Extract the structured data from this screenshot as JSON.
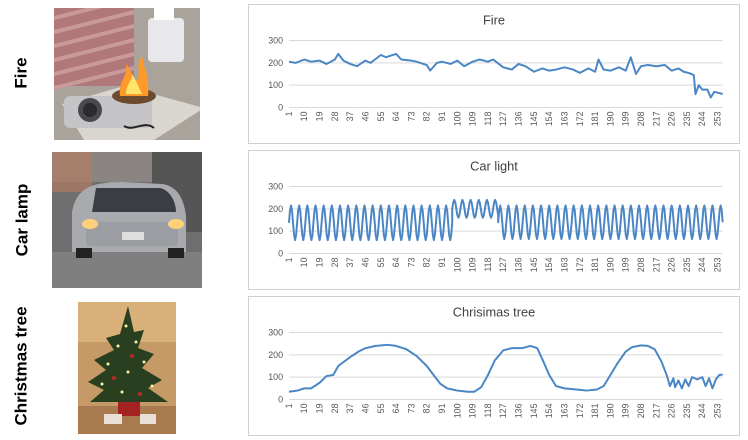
{
  "rows": [
    {
      "label": "Fire"
    },
    {
      "label": "Car lamp"
    },
    {
      "label": "Christmas tree"
    }
  ],
  "series_color": "#4a86c5",
  "chart_data": [
    {
      "type": "line",
      "title": "Fire",
      "ylim": [
        0,
        300
      ],
      "yticks": [
        0,
        100,
        200,
        300
      ],
      "xticks": [
        "1",
        "10",
        "19",
        "28",
        "37",
        "46",
        "55",
        "64",
        "73",
        "82",
        "91",
        "100",
        "109",
        "118",
        "127",
        "136",
        "145",
        "154",
        "163",
        "172",
        "181",
        "190",
        "199",
        "208",
        "217",
        "226",
        "235",
        "244",
        "253"
      ],
      "grid": true,
      "points": [
        [
          1,
          205
        ],
        [
          5,
          200
        ],
        [
          10,
          215
        ],
        [
          14,
          205
        ],
        [
          19,
          210
        ],
        [
          23,
          195
        ],
        [
          28,
          215
        ],
        [
          30,
          240
        ],
        [
          33,
          210
        ],
        [
          37,
          195
        ],
        [
          41,
          185
        ],
        [
          46,
          210
        ],
        [
          49,
          200
        ],
        [
          55,
          235
        ],
        [
          58,
          225
        ],
        [
          64,
          240
        ],
        [
          67,
          215
        ],
        [
          73,
          210
        ],
        [
          76,
          205
        ],
        [
          82,
          190
        ],
        [
          84,
          165
        ],
        [
          88,
          200
        ],
        [
          91,
          205
        ],
        [
          96,
          195
        ],
        [
          100,
          210
        ],
        [
          104,
          185
        ],
        [
          109,
          205
        ],
        [
          113,
          215
        ],
        [
          118,
          205
        ],
        [
          121,
          215
        ],
        [
          127,
          180
        ],
        [
          132,
          170
        ],
        [
          136,
          195
        ],
        [
          140,
          185
        ],
        [
          145,
          160
        ],
        [
          150,
          175
        ],
        [
          154,
          165
        ],
        [
          158,
          170
        ],
        [
          163,
          180
        ],
        [
          168,
          170
        ],
        [
          172,
          155
        ],
        [
          177,
          175
        ],
        [
          181,
          160
        ],
        [
          183,
          215
        ],
        [
          186,
          170
        ],
        [
          190,
          165
        ],
        [
          195,
          180
        ],
        [
          199,
          165
        ],
        [
          202,
          225
        ],
        [
          205,
          150
        ],
        [
          208,
          185
        ],
        [
          212,
          190
        ],
        [
          217,
          185
        ],
        [
          222,
          190
        ],
        [
          226,
          165
        ],
        [
          230,
          175
        ],
        [
          233,
          160
        ],
        [
          236,
          155
        ],
        [
          239,
          145
        ],
        [
          240,
          60
        ],
        [
          242,
          100
        ],
        [
          244,
          80
        ],
        [
          247,
          80
        ],
        [
          249,
          45
        ],
        [
          251,
          70
        ],
        [
          254,
          65
        ],
        [
          256,
          60
        ]
      ]
    },
    {
      "type": "line",
      "title": "Car light",
      "ylim": [
        0,
        300
      ],
      "yticks": [
        0,
        100,
        200,
        300
      ],
      "xticks": [
        "1",
        "10",
        "19",
        "28",
        "37",
        "46",
        "55",
        "64",
        "73",
        "82",
        "91",
        "100",
        "109",
        "118",
        "127",
        "136",
        "145",
        "154",
        "163",
        "172",
        "181",
        "190",
        "199",
        "208",
        "217",
        "226",
        "235",
        "244",
        "253"
      ],
      "grid": true,
      "oscillation": [
        {
          "from": 1,
          "to": 97,
          "period": 4.8,
          "high": 215,
          "low": 60
        },
        {
          "from": 97,
          "to": 124,
          "period": 4.8,
          "high": 240,
          "low": 160
        },
        {
          "from": 124,
          "to": 256,
          "period": 4.8,
          "high": 215,
          "low": 65
        }
      ]
    },
    {
      "type": "line",
      "title": "Chrisimas tree",
      "ylim": [
        0,
        300
      ],
      "yticks": [
        0,
        100,
        200,
        300
      ],
      "xticks": [
        "1",
        "10",
        "19",
        "28",
        "37",
        "46",
        "55",
        "64",
        "73",
        "82",
        "91",
        "100",
        "109",
        "118",
        "127",
        "136",
        "145",
        "154",
        "163",
        "172",
        "181",
        "190",
        "199",
        "208",
        "217",
        "226",
        "235",
        "244",
        "253"
      ],
      "grid": true,
      "points": [
        [
          1,
          35
        ],
        [
          6,
          40
        ],
        [
          10,
          50
        ],
        [
          14,
          50
        ],
        [
          19,
          75
        ],
        [
          23,
          105
        ],
        [
          27,
          110
        ],
        [
          30,
          150
        ],
        [
          37,
          190
        ],
        [
          42,
          215
        ],
        [
          46,
          230
        ],
        [
          52,
          240
        ],
        [
          59,
          245
        ],
        [
          64,
          240
        ],
        [
          70,
          225
        ],
        [
          76,
          195
        ],
        [
          82,
          150
        ],
        [
          86,
          110
        ],
        [
          90,
          70
        ],
        [
          94,
          50
        ],
        [
          100,
          40
        ],
        [
          106,
          35
        ],
        [
          110,
          35
        ],
        [
          114,
          55
        ],
        [
          118,
          110
        ],
        [
          122,
          175
        ],
        [
          127,
          220
        ],
        [
          132,
          230
        ],
        [
          138,
          230
        ],
        [
          143,
          240
        ],
        [
          147,
          230
        ],
        [
          150,
          180
        ],
        [
          154,
          110
        ],
        [
          158,
          60
        ],
        [
          163,
          50
        ],
        [
          170,
          45
        ],
        [
          176,
          40
        ],
        [
          182,
          45
        ],
        [
          186,
          60
        ],
        [
          190,
          110
        ],
        [
          194,
          160
        ],
        [
          199,
          215
        ],
        [
          203,
          235
        ],
        [
          208,
          242
        ],
        [
          212,
          240
        ],
        [
          216,
          225
        ],
        [
          220,
          170
        ],
        [
          223,
          110
        ],
        [
          225,
          60
        ],
        [
          227,
          95
        ],
        [
          228,
          55
        ],
        [
          230,
          85
        ],
        [
          232,
          50
        ],
        [
          234,
          90
        ],
        [
          236,
          60
        ],
        [
          238,
          100
        ],
        [
          241,
          90
        ],
        [
          244,
          100
        ],
        [
          246,
          60
        ],
        [
          248,
          95
        ],
        [
          250,
          50
        ],
        [
          252,
          90
        ],
        [
          254,
          110
        ],
        [
          256,
          112
        ]
      ]
    }
  ]
}
